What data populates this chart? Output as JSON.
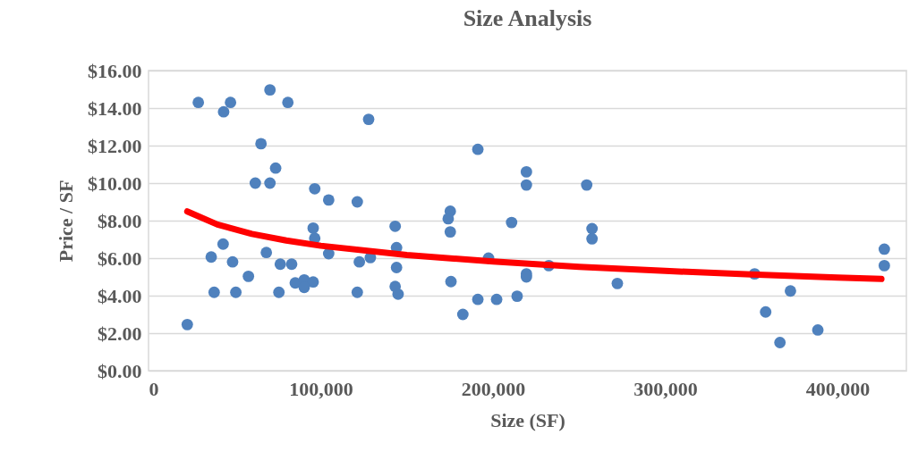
{
  "chart_data": {
    "type": "scatter",
    "title": "Size Analysis",
    "xlabel": "Size (SF)",
    "ylabel": "Price / SF",
    "xlim": [
      0,
      440000
    ],
    "ylim": [
      0,
      16
    ],
    "xticks": [
      0,
      {
        "value": 100000,
        "label": "100,000"
      },
      {
        "value": 200000,
        "label": "200,000"
      },
      {
        "value": 300000,
        "label": "300,000"
      },
      {
        "value": 400000,
        "label": "400,000"
      }
    ],
    "yticks": [
      {
        "value": 0,
        "label": "$0.00"
      },
      {
        "value": 2,
        "label": "$2.00"
      },
      {
        "value": 4,
        "label": "$4.00"
      },
      {
        "value": 6,
        "label": "$6.00"
      },
      {
        "value": 8,
        "label": "$8.00"
      },
      {
        "value": 10,
        "label": "$10.00"
      },
      {
        "value": 12,
        "label": "$12.00"
      },
      {
        "value": 14,
        "label": "$14.00"
      },
      {
        "value": 16,
        "label": "$16.00"
      }
    ],
    "grid": "y",
    "series": [
      {
        "marker": "circle",
        "color": "#4f81bd",
        "x": [
          22500,
          28900,
          43600,
          47600,
          70500,
          80900,
          127800,
          65300,
          73800,
          62000,
          70500,
          96500,
          104600,
          121200,
          143200,
          95600,
          96500,
          43300,
          36400,
          48800,
          68400,
          76500,
          83100,
          104600,
          122400,
          128800,
          144000,
          144000,
          58000,
          85200,
          90400,
          95600,
          90400,
          38100,
          50700,
          75700,
          121200,
          143200,
          144900,
          191200,
          219400,
          219400,
          254400,
          175200,
          174000,
          175200,
          210800,
          257500,
          257500,
          197400,
          232400,
          219400,
          219400,
          175600,
          272200,
          191200,
          202100,
          214000,
          182500,
          351900,
          358300,
          366600,
          372700,
          388600,
          427200,
          427200
        ],
        "values": [
          2.46,
          14.3,
          13.8,
          14.3,
          14.97,
          14.3,
          13.4,
          12.1,
          10.8,
          10.0,
          10.0,
          9.7,
          9.1,
          9.0,
          7.7,
          7.6,
          7.06,
          6.75,
          6.06,
          5.8,
          6.3,
          5.68,
          5.68,
          6.24,
          5.8,
          6.03,
          6.56,
          5.5,
          5.03,
          4.68,
          4.84,
          4.73,
          4.44,
          4.18,
          4.18,
          4.18,
          4.18,
          4.49,
          4.08,
          11.8,
          10.6,
          9.9,
          9.9,
          8.5,
          8.1,
          7.4,
          7.9,
          7.57,
          7.03,
          6.0,
          5.6,
          5.16,
          5.0,
          4.75,
          4.65,
          3.8,
          3.8,
          3.97,
          3.0,
          5.16,
          3.13,
          1.5,
          4.25,
          2.17,
          6.48,
          5.6
        ]
      },
      {
        "type": "line",
        "marker": "none",
        "color": "#ff0000",
        "x": [
          22500,
          40000,
          60000,
          80000,
          100000,
          150000,
          200000,
          250000,
          300000,
          350000,
          400000,
          425500
        ],
        "values": [
          8.49,
          7.79,
          7.29,
          6.94,
          6.66,
          6.17,
          5.82,
          5.54,
          5.32,
          5.13,
          4.97,
          4.89
        ]
      }
    ]
  }
}
